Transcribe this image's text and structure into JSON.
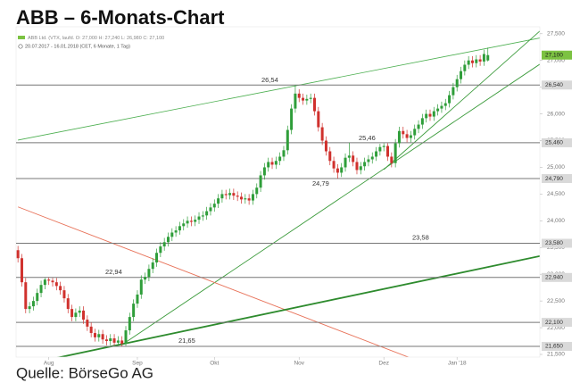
{
  "chart_data": {
    "type": "candlestick",
    "title": "ABB – 6-Monats-Chart",
    "info": [
      "ABB Ltd. (VTX, laufd. O: 27,000 H: 27,240 L: 26,980 C: 27,100",
      "20.07.2017 - 16.01.2018 (CET, 6 Monate, 1 Tag)"
    ],
    "source": "Quelle: BörseGo AG",
    "up_color": "#2f9e3a",
    "down_color": "#d0312d",
    "xlim": [
      -0.5,
      135.5
    ],
    "xticks": [
      {
        "value": 8,
        "label": "Aug"
      },
      {
        "value": 31,
        "label": "Sep"
      },
      {
        "value": 51,
        "label": "Okt"
      },
      {
        "value": 73,
        "label": "Nov"
      },
      {
        "value": 95,
        "label": "Dez"
      },
      {
        "value": 114,
        "label": "Jan '18"
      }
    ],
    "ylim": [
      21.45,
      27.63
    ],
    "yticks": [
      {
        "value": 21.5,
        "label": "21,500"
      },
      {
        "value": 22.0,
        "label": "22,000"
      },
      {
        "value": 22.5,
        "label": "22,500"
      },
      {
        "value": 23.0,
        "label": "23,000"
      },
      {
        "value": 23.5,
        "label": "23,500"
      },
      {
        "value": 24.0,
        "label": "24,000"
      },
      {
        "value": 24.5,
        "label": "24,500"
      },
      {
        "value": 25.0,
        "label": "25,000"
      },
      {
        "value": 25.5,
        "label": "25,500"
      },
      {
        "value": 26.0,
        "label": "26,000"
      },
      {
        "value": 26.5,
        "label": "26,500"
      },
      {
        "value": 27.0,
        "label": "27,000"
      },
      {
        "value": 27.5,
        "label": "27,500"
      }
    ],
    "open": [
      23.45,
      23.3,
      22.85,
      22.35,
      22.4,
      22.5,
      22.65,
      22.8,
      22.9,
      22.88,
      22.85,
      22.78,
      22.7,
      22.55,
      22.35,
      22.2,
      22.28,
      22.32,
      22.15,
      22.02,
      21.9,
      21.82,
      21.88,
      21.78,
      21.75,
      21.8,
      21.72,
      21.76,
      21.7,
      21.95,
      22.2,
      22.45,
      22.62,
      22.9,
      22.95,
      23.1,
      23.22,
      23.4,
      23.52,
      23.6,
      23.7,
      23.78,
      23.82,
      23.9,
      23.95,
      24.0,
      23.98,
      24.02,
      24.08,
      24.1,
      24.18,
      24.25,
      24.32,
      24.42,
      24.5,
      24.48,
      24.52,
      24.47,
      24.45,
      24.4,
      24.42,
      24.38,
      24.5,
      24.62,
      24.85,
      25.0,
      25.1,
      25.05,
      25.12,
      25.2,
      25.32,
      25.7,
      26.1,
      26.38,
      26.3,
      26.25,
      26.28,
      26.3,
      26.05,
      25.75,
      25.5,
      25.3,
      25.12,
      24.98,
      24.9,
      25.0,
      25.18,
      25.22,
      25.1,
      24.95,
      25.02,
      25.1,
      25.15,
      25.2,
      25.3,
      25.38,
      25.4,
      25.2,
      25.08,
      25.45,
      25.68,
      25.62,
      25.55,
      25.6,
      25.72,
      25.8,
      25.92,
      26.0,
      25.95,
      26.05,
      26.1,
      26.15,
      26.2,
      26.35,
      26.5,
      26.65,
      26.8,
      26.92,
      27.0,
      26.95,
      27.02,
      26.98,
      27.0
    ],
    "high": [
      23.53,
      23.38,
      22.93,
      22.48,
      22.58,
      22.73,
      22.88,
      22.93,
      22.94,
      22.93,
      22.93,
      22.86,
      22.78,
      22.63,
      22.43,
      22.36,
      22.4,
      22.4,
      22.23,
      22.1,
      21.98,
      21.96,
      21.96,
      21.86,
      21.88,
      21.88,
      21.84,
      21.84,
      22.03,
      22.28,
      22.53,
      22.7,
      22.98,
      23.03,
      23.18,
      23.3,
      23.48,
      23.6,
      23.68,
      23.78,
      23.86,
      23.9,
      23.98,
      24.03,
      24.08,
      24.08,
      24.1,
      24.16,
      24.18,
      24.26,
      24.33,
      24.4,
      24.5,
      24.58,
      24.58,
      24.6,
      24.6,
      24.55,
      24.53,
      24.5,
      24.5,
      24.58,
      24.7,
      24.93,
      25.08,
      25.18,
      25.18,
      25.2,
      25.28,
      25.4,
      25.78,
      26.18,
      26.54,
      26.46,
      26.38,
      26.36,
      26.38,
      26.38,
      26.13,
      25.83,
      25.58,
      25.38,
      25.2,
      25.06,
      25.08,
      25.26,
      25.46,
      25.3,
      25.18,
      25.1,
      25.18,
      25.23,
      25.28,
      25.38,
      25.44,
      25.45,
      25.45,
      25.28,
      25.53,
      25.76,
      25.76,
      25.7,
      25.68,
      25.8,
      25.88,
      26.0,
      26.08,
      26.08,
      26.13,
      26.18,
      26.23,
      26.28,
      26.43,
      26.58,
      26.73,
      26.88,
      27.0,
      27.08,
      27.08,
      27.1,
      27.1,
      27.2,
      27.24
    ],
    "low": [
      23.22,
      22.77,
      22.27,
      22.27,
      22.32,
      22.42,
      22.57,
      22.72,
      22.8,
      22.77,
      22.7,
      22.62,
      22.47,
      22.27,
      22.12,
      22.12,
      22.2,
      22.07,
      21.94,
      21.82,
      21.74,
      21.74,
      21.7,
      21.67,
      21.67,
      21.67,
      21.66,
      21.65,
      21.66,
      21.87,
      22.12,
      22.37,
      22.54,
      22.82,
      22.87,
      23.02,
      23.14,
      23.32,
      23.44,
      23.52,
      23.62,
      23.7,
      23.74,
      23.82,
      23.87,
      23.9,
      23.9,
      23.94,
      24.0,
      24.02,
      24.1,
      24.17,
      24.24,
      24.34,
      24.4,
      24.4,
      24.39,
      24.37,
      24.32,
      24.32,
      24.3,
      24.3,
      24.42,
      24.54,
      24.77,
      24.92,
      24.97,
      24.97,
      25.04,
      25.12,
      25.24,
      25.62,
      26.02,
      26.22,
      26.17,
      26.17,
      26.2,
      25.97,
      25.67,
      25.42,
      25.22,
      25.04,
      24.9,
      24.79,
      24.82,
      24.92,
      25.1,
      25.02,
      24.87,
      24.87,
      24.94,
      25.02,
      25.07,
      25.12,
      25.22,
      25.3,
      25.12,
      25.0,
      25.0,
      25.37,
      25.54,
      25.47,
      25.47,
      25.52,
      25.64,
      25.72,
      25.84,
      25.87,
      25.87,
      25.97,
      26.02,
      26.07,
      26.12,
      26.27,
      26.42,
      26.57,
      26.72,
      26.84,
      26.87,
      26.87,
      26.9,
      26.9,
      26.98
    ],
    "close": [
      23.3,
      22.85,
      22.35,
      22.4,
      22.5,
      22.65,
      22.8,
      22.9,
      22.88,
      22.85,
      22.78,
      22.7,
      22.55,
      22.35,
      22.2,
      22.28,
      22.32,
      22.15,
      22.02,
      21.9,
      21.82,
      21.88,
      21.78,
      21.75,
      21.8,
      21.72,
      21.76,
      21.7,
      21.95,
      22.2,
      22.45,
      22.62,
      22.9,
      22.95,
      23.1,
      23.22,
      23.4,
      23.52,
      23.6,
      23.7,
      23.78,
      23.82,
      23.9,
      23.95,
      24.0,
      23.98,
      24.02,
      24.08,
      24.1,
      24.18,
      24.25,
      24.32,
      24.42,
      24.5,
      24.48,
      24.52,
      24.47,
      24.45,
      24.4,
      24.42,
      24.38,
      24.5,
      24.62,
      24.85,
      25.0,
      25.1,
      25.05,
      25.12,
      25.2,
      25.32,
      25.7,
      26.1,
      26.38,
      26.3,
      26.25,
      26.28,
      26.3,
      26.05,
      25.75,
      25.5,
      25.3,
      25.12,
      24.98,
      24.9,
      25.0,
      25.18,
      25.22,
      25.1,
      24.95,
      25.02,
      25.1,
      25.15,
      25.2,
      25.3,
      25.38,
      25.4,
      25.2,
      25.08,
      25.45,
      25.68,
      25.62,
      25.55,
      25.6,
      25.72,
      25.8,
      25.92,
      26.0,
      25.95,
      26.05,
      26.1,
      26.15,
      26.2,
      26.35,
      26.5,
      26.65,
      26.8,
      26.92,
      27.0,
      26.95,
      27.02,
      26.98,
      27.12,
      27.1
    ],
    "last_label": "27,100",
    "last_color": "#7cc242",
    "levels": [
      {
        "value": 26.54,
        "label": "26,54",
        "axis_label": "26,540"
      },
      {
        "value": 25.46,
        "label": "25,46",
        "axis_label": "25,460"
      },
      {
        "value": 24.79,
        "label": "24,79",
        "axis_label": "24,790"
      },
      {
        "value": 23.58,
        "label": "23,58",
        "axis_label": "23,580"
      },
      {
        "value": 22.94,
        "label": "22,94",
        "axis_label": "22,940"
      },
      {
        "value": 22.1,
        "axis_label": "22,100"
      },
      {
        "value": 21.65,
        "label": "21,65",
        "axis_label": "21,650"
      }
    ],
    "level_color": "#777777",
    "trendlines": [
      {
        "from": [
          0,
          25.51
        ],
        "to": [
          135.5,
          27.42
        ],
        "color": "#4caf50",
        "width": 0.8
      },
      {
        "from": [
          27,
          21.68
        ],
        "to": [
          135.5,
          26.93
        ],
        "color": "#3a9a3a",
        "width": 0.9
      },
      {
        "from": [
          95,
          24.96
        ],
        "to": [
          135.5,
          27.55
        ],
        "color": "#3a9a3a",
        "width": 0.9
      },
      {
        "from": [
          0,
          24.26
        ],
        "to": [
          104.2,
          21.37
        ],
        "color": "#e8735a",
        "width": 0.9
      },
      {
        "from": [
          5.8,
          21.37
        ],
        "to": [
          135.5,
          23.34
        ],
        "color": "#2e8b2e",
        "width": 1.8
      }
    ]
  }
}
